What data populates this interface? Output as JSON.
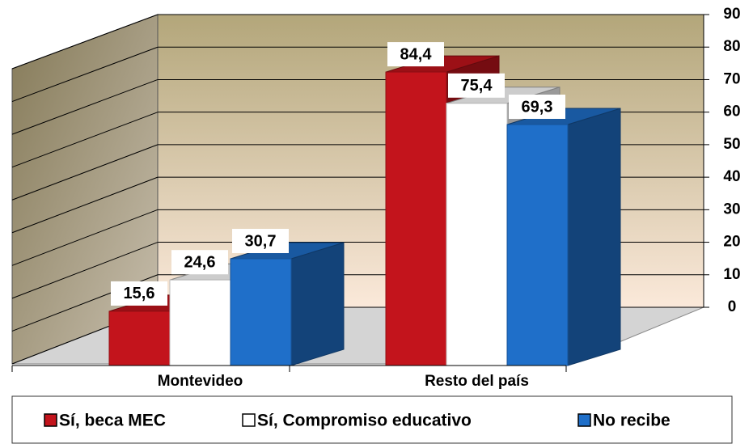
{
  "chart_data": {
    "type": "bar3d",
    "categories": [
      "Montevideo",
      "Resto del país"
    ],
    "series": [
      {
        "name": "Sí, beca MEC",
        "color": "#c3141c",
        "values": [
          15.6,
          84.4
        ],
        "value_labels": [
          "15,6",
          "84,4"
        ]
      },
      {
        "name": "Sí, Compromiso educativo",
        "color": "#ffffff",
        "values": [
          24.6,
          75.4
        ],
        "value_labels": [
          "24,6",
          "75,4"
        ]
      },
      {
        "name": "No recibe",
        "color": "#1f6fc9",
        "values": [
          30.7,
          69.3
        ],
        "value_labels": [
          "30,7",
          "69,3"
        ]
      }
    ],
    "ylim": [
      0,
      90
    ],
    "yticks": [
      0,
      10,
      20,
      30,
      40,
      50,
      60,
      70,
      80,
      90
    ],
    "grid": true,
    "legend": "bottom"
  }
}
